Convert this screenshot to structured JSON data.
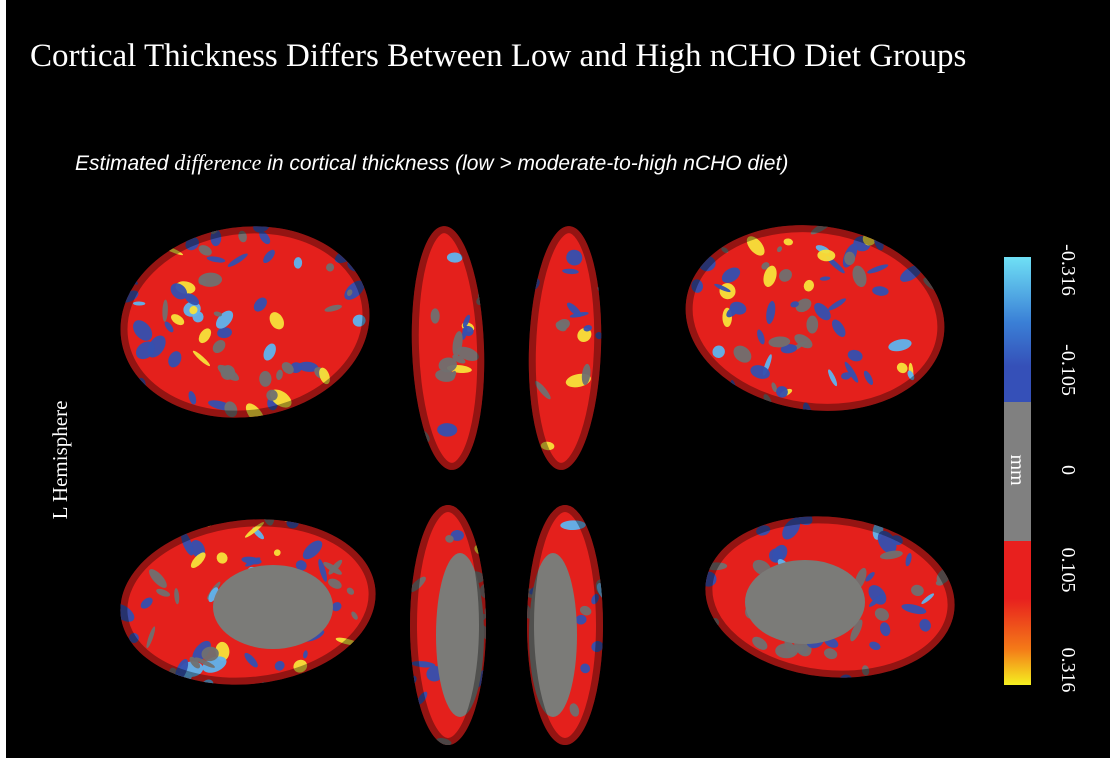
{
  "header": {
    "title": "Cortical Thickness Differs Between Low and High nCHO Diet Groups",
    "subtitle": {
      "before": "Estimated ",
      "emphasis": "difference",
      "after": " in cortical thickness (low > moderate-to-high nCHO diet)"
    }
  },
  "side_label": "L Hemisphere",
  "colorbar": {
    "unit": "mm",
    "ticks": [
      -0.316,
      -0.105,
      0,
      0.105,
      0.316
    ]
  }
}
